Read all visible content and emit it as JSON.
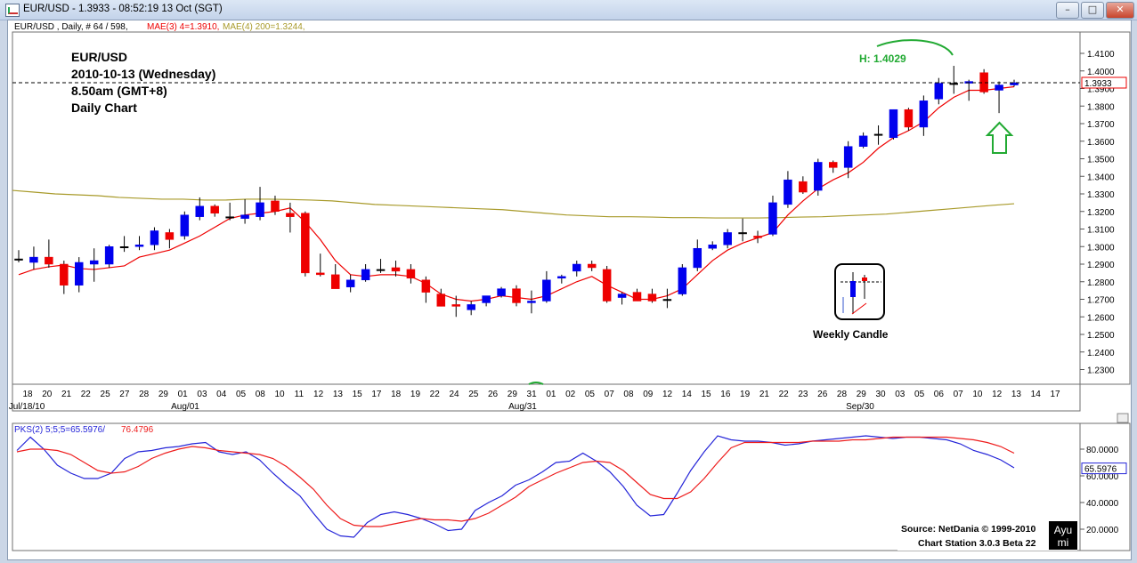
{
  "window": {
    "title": "EUR/USD - 1.3933 - 08:52:19  13 Oct (SGT)",
    "buttons": [
      "minimize",
      "maximize",
      "close"
    ]
  },
  "header_info": {
    "symbol": "EUR/USD , Daily, # 64 / 598,",
    "mae3": "MAE(3) 4=1.3910,",
    "mae4": "MAE(4) 200=1.3244,"
  },
  "annotation": {
    "line1": "EUR/USD",
    "line2": "2010-10-13 (Wednesday)",
    "line3": "8.50am (GMT+8)",
    "line4": "Daily Chart",
    "high_label": "H: 1.4029",
    "weekly_label": "Weekly Candle"
  },
  "price_axis": {
    "current_price_label": "1.3933"
  },
  "oscillator": {
    "label_pks": "PKS(2) 5;5;5=65.5976/",
    "label_sig": "76.4796",
    "current_value_label": "65.5976"
  },
  "footer": {
    "source": "Source: NetDania © 1999-2010",
    "station": "Chart Station 3.0.3 Beta 22",
    "logo_top": "Ayu",
    "logo_bottom": "mi"
  },
  "colors": {
    "bull": "#0000ee",
    "bear": "#ee0000",
    "ma_fast": "#ee0000",
    "ma_slow": "#a89a2a",
    "osc_k": "#2424d8",
    "osc_d": "#ee1c1c",
    "annotation_green": "#22aa33"
  },
  "chart_data": [
    {
      "type": "candlestick",
      "title": "EUR/USD , Daily",
      "ylim": [
        1.22,
        1.42
      ],
      "y_ticks": [
        "1.4100",
        "1.4000",
        "1.3900",
        "1.3800",
        "1.3700",
        "1.3600",
        "1.3500",
        "1.3400",
        "1.3300",
        "1.3200",
        "1.3100",
        "1.3000",
        "1.2900",
        "1.2800",
        "1.2700",
        "1.2600",
        "1.2500",
        "1.2400",
        "1.2300"
      ],
      "x_ticks": [
        "18",
        "20",
        "21",
        "22",
        "25",
        "27",
        "28",
        "29",
        "01",
        "03",
        "04",
        "05",
        "08",
        "10",
        "11",
        "12",
        "13",
        "15",
        "17",
        "18",
        "19",
        "22",
        "24",
        "25",
        "26",
        "29",
        "31",
        "01",
        "02",
        "05",
        "07",
        "08",
        "09",
        "12",
        "14",
        "15",
        "16",
        "19",
        "21",
        "22",
        "23",
        "26",
        "28",
        "29",
        "30",
        "03",
        "05",
        "06",
        "07",
        "10",
        "12",
        "13",
        "14",
        "17"
      ],
      "x_major_labels": [
        "Jul/18/10",
        "Aug/01",
        "Aug/31",
        "Sep/30"
      ],
      "candles": [
        {
          "o": 1.293,
          "h": 1.298,
          "l": 1.291,
          "c": 1.293
        },
        {
          "o": 1.291,
          "h": 1.3,
          "l": 1.287,
          "c": 1.294
        },
        {
          "o": 1.294,
          "h": 1.304,
          "l": 1.288,
          "c": 1.29
        },
        {
          "o": 1.29,
          "h": 1.292,
          "l": 1.273,
          "c": 1.278
        },
        {
          "o": 1.278,
          "h": 1.294,
          "l": 1.274,
          "c": 1.291
        },
        {
          "o": 1.29,
          "h": 1.299,
          "l": 1.28,
          "c": 1.292
        },
        {
          "o": 1.29,
          "h": 1.301,
          "l": 1.288,
          "c": 1.3
        },
        {
          "o": 1.3,
          "h": 1.306,
          "l": 1.297,
          "c": 1.3
        },
        {
          "o": 1.3,
          "h": 1.306,
          "l": 1.298,
          "c": 1.301
        },
        {
          "o": 1.301,
          "h": 1.311,
          "l": 1.298,
          "c": 1.309
        },
        {
          "o": 1.308,
          "h": 1.31,
          "l": 1.299,
          "c": 1.304
        },
        {
          "o": 1.306,
          "h": 1.32,
          "l": 1.304,
          "c": 1.318
        },
        {
          "o": 1.317,
          "h": 1.328,
          "l": 1.315,
          "c": 1.323
        },
        {
          "o": 1.323,
          "h": 1.324,
          "l": 1.317,
          "c": 1.319
        },
        {
          "o": 1.317,
          "h": 1.325,
          "l": 1.315,
          "c": 1.317
        },
        {
          "o": 1.316,
          "h": 1.327,
          "l": 1.313,
          "c": 1.318
        },
        {
          "o": 1.317,
          "h": 1.334,
          "l": 1.315,
          "c": 1.325
        },
        {
          "o": 1.326,
          "h": 1.329,
          "l": 1.318,
          "c": 1.32
        },
        {
          "o": 1.319,
          "h": 1.325,
          "l": 1.308,
          "c": 1.317
        },
        {
          "o": 1.319,
          "h": 1.32,
          "l": 1.283,
          "c": 1.285
        },
        {
          "o": 1.285,
          "h": 1.296,
          "l": 1.283,
          "c": 1.284
        },
        {
          "o": 1.284,
          "h": 1.29,
          "l": 1.277,
          "c": 1.276
        },
        {
          "o": 1.277,
          "h": 1.284,
          "l": 1.274,
          "c": 1.281
        },
        {
          "o": 1.281,
          "h": 1.29,
          "l": 1.28,
          "c": 1.287
        },
        {
          "o": 1.287,
          "h": 1.293,
          "l": 1.285,
          "c": 1.287
        },
        {
          "o": 1.288,
          "h": 1.292,
          "l": 1.283,
          "c": 1.286
        },
        {
          "o": 1.287,
          "h": 1.29,
          "l": 1.279,
          "c": 1.282
        },
        {
          "o": 1.281,
          "h": 1.283,
          "l": 1.268,
          "c": 1.274
        },
        {
          "o": 1.273,
          "h": 1.276,
          "l": 1.266,
          "c": 1.266
        },
        {
          "o": 1.267,
          "h": 1.272,
          "l": 1.26,
          "c": 1.266
        },
        {
          "o": 1.264,
          "h": 1.269,
          "l": 1.261,
          "c": 1.267
        },
        {
          "o": 1.268,
          "h": 1.271,
          "l": 1.266,
          "c": 1.272
        },
        {
          "o": 1.272,
          "h": 1.277,
          "l": 1.271,
          "c": 1.276
        },
        {
          "o": 1.276,
          "h": 1.278,
          "l": 1.266,
          "c": 1.268
        },
        {
          "o": 1.268,
          "h": 1.275,
          "l": 1.262,
          "c": 1.269
        },
        {
          "o": 1.269,
          "h": 1.286,
          "l": 1.268,
          "c": 1.281
        },
        {
          "o": 1.282,
          "h": 1.284,
          "l": 1.279,
          "c": 1.283
        },
        {
          "o": 1.286,
          "h": 1.292,
          "l": 1.283,
          "c": 1.29
        },
        {
          "o": 1.29,
          "h": 1.292,
          "l": 1.286,
          "c": 1.288
        },
        {
          "o": 1.287,
          "h": 1.289,
          "l": 1.268,
          "c": 1.269
        },
        {
          "o": 1.271,
          "h": 1.274,
          "l": 1.267,
          "c": 1.273
        },
        {
          "o": 1.274,
          "h": 1.276,
          "l": 1.269,
          "c": 1.269
        },
        {
          "o": 1.273,
          "h": 1.276,
          "l": 1.268,
          "c": 1.269
        },
        {
          "o": 1.27,
          "h": 1.276,
          "l": 1.265,
          "c": 1.27
        },
        {
          "o": 1.273,
          "h": 1.29,
          "l": 1.272,
          "c": 1.288
        },
        {
          "o": 1.288,
          "h": 1.304,
          "l": 1.286,
          "c": 1.299
        },
        {
          "o": 1.299,
          "h": 1.303,
          "l": 1.298,
          "c": 1.301
        },
        {
          "o": 1.301,
          "h": 1.31,
          "l": 1.299,
          "c": 1.308
        },
        {
          "o": 1.308,
          "h": 1.316,
          "l": 1.303,
          "c": 1.308
        },
        {
          "o": 1.306,
          "h": 1.309,
          "l": 1.302,
          "c": 1.305
        },
        {
          "o": 1.307,
          "h": 1.329,
          "l": 1.306,
          "c": 1.325
        },
        {
          "o": 1.324,
          "h": 1.343,
          "l": 1.322,
          "c": 1.338
        },
        {
          "o": 1.337,
          "h": 1.34,
          "l": 1.33,
          "c": 1.331
        },
        {
          "o": 1.332,
          "h": 1.35,
          "l": 1.329,
          "c": 1.348
        },
        {
          "o": 1.348,
          "h": 1.349,
          "l": 1.342,
          "c": 1.345
        },
        {
          "o": 1.345,
          "h": 1.36,
          "l": 1.339,
          "c": 1.357
        },
        {
          "o": 1.357,
          "h": 1.365,
          "l": 1.356,
          "c": 1.363
        },
        {
          "o": 1.364,
          "h": 1.369,
          "l": 1.358,
          "c": 1.364
        },
        {
          "o": 1.362,
          "h": 1.378,
          "l": 1.361,
          "c": 1.378
        },
        {
          "o": 1.378,
          "h": 1.379,
          "l": 1.366,
          "c": 1.368
        },
        {
          "o": 1.368,
          "h": 1.386,
          "l": 1.363,
          "c": 1.383
        },
        {
          "o": 1.384,
          "h": 1.396,
          "l": 1.381,
          "c": 1.393
        },
        {
          "o": 1.393,
          "h": 1.4029,
          "l": 1.387,
          "c": 1.393
        },
        {
          "o": 1.393,
          "h": 1.395,
          "l": 1.383,
          "c": 1.394
        },
        {
          "o": 1.399,
          "h": 1.401,
          "l": 1.387,
          "c": 1.388
        },
        {
          "o": 1.389,
          "h": 1.394,
          "l": 1.376,
          "c": 1.392
        },
        {
          "o": 1.392,
          "h": 1.395,
          "l": 1.391,
          "c": 1.3933
        }
      ],
      "ma_fast_name": "MAE(3) 4",
      "ma_fast": [
        1.284,
        1.287,
        1.2885,
        1.2895,
        1.2875,
        1.287,
        1.288,
        1.289,
        1.294,
        1.296,
        1.298,
        1.302,
        1.306,
        1.311,
        1.316,
        1.318,
        1.319,
        1.32,
        1.322,
        1.314,
        1.304,
        1.292,
        1.284,
        1.283,
        1.284,
        1.284,
        1.283,
        1.279,
        1.273,
        1.27,
        1.269,
        1.27,
        1.272,
        1.271,
        1.27,
        1.272,
        1.276,
        1.28,
        1.283,
        1.278,
        1.274,
        1.27,
        1.27,
        1.272,
        1.276,
        1.284,
        1.292,
        1.298,
        1.302,
        1.305,
        1.308,
        1.318,
        1.326,
        1.333,
        1.338,
        1.342,
        1.348,
        1.356,
        1.362,
        1.366,
        1.371,
        1.379,
        1.385,
        1.389,
        1.389,
        1.39,
        1.391
      ],
      "ma_slow_name": "MAE(4) 200",
      "ma_slow": [
        1.332,
        1.331,
        1.33,
        1.3295,
        1.329,
        1.328,
        1.3275,
        1.327,
        1.327,
        1.3265,
        1.3265,
        1.327,
        1.327,
        1.3268,
        1.3265,
        1.326,
        1.325,
        1.324,
        1.3235,
        1.323,
        1.3225,
        1.322,
        1.3215,
        1.321,
        1.32,
        1.319,
        1.318,
        1.3175,
        1.317,
        1.317,
        1.3168,
        1.3165,
        1.3165,
        1.3163,
        1.3163,
        1.3163,
        1.3165,
        1.3168,
        1.317,
        1.3175,
        1.318,
        1.3185,
        1.3195,
        1.3205,
        1.3215,
        1.3225,
        1.3235,
        1.3244
      ]
    },
    {
      "type": "line",
      "title": "PKS(2) 5;5;5",
      "ylim": [
        10,
        95
      ],
      "y_ticks": [
        "80.0000",
        "60.0000",
        "40.0000",
        "20.0000"
      ],
      "series": [
        {
          "name": "65.5976",
          "values": [
            79,
            89,
            80,
            68,
            62,
            58,
            58,
            62,
            73,
            78,
            79,
            81,
            82,
            84,
            85,
            78,
            76,
            78,
            72,
            62,
            53,
            45,
            32,
            20,
            15,
            14,
            25,
            31,
            33,
            31,
            28,
            24,
            19,
            20,
            34,
            40,
            45,
            53,
            57,
            63,
            70,
            71,
            77,
            71,
            63,
            52,
            38,
            30,
            31,
            47,
            64,
            78,
            90,
            87,
            86,
            86,
            85,
            83,
            84,
            86,
            87,
            88,
            89,
            90,
            89,
            88,
            89,
            89,
            88,
            87,
            84,
            79,
            76,
            72,
            66
          ]
        },
        {
          "name": "76.4796",
          "values": [
            78,
            80,
            80,
            79,
            76,
            70,
            64,
            62,
            63,
            67,
            73,
            77,
            80,
            82,
            81,
            79,
            78,
            77,
            76,
            73,
            67,
            59,
            50,
            38,
            28,
            23,
            22,
            22,
            24,
            26,
            28,
            27,
            27,
            26,
            28,
            32,
            38,
            44,
            52,
            57,
            62,
            66,
            70,
            71,
            70,
            64,
            55,
            46,
            43,
            43,
            48,
            58,
            70,
            81,
            85,
            85,
            85,
            85,
            85,
            86,
            86,
            86,
            87,
            87,
            88,
            89,
            89,
            89,
            89,
            89,
            88,
            87,
            85,
            82,
            77
          ]
        }
      ]
    }
  ]
}
